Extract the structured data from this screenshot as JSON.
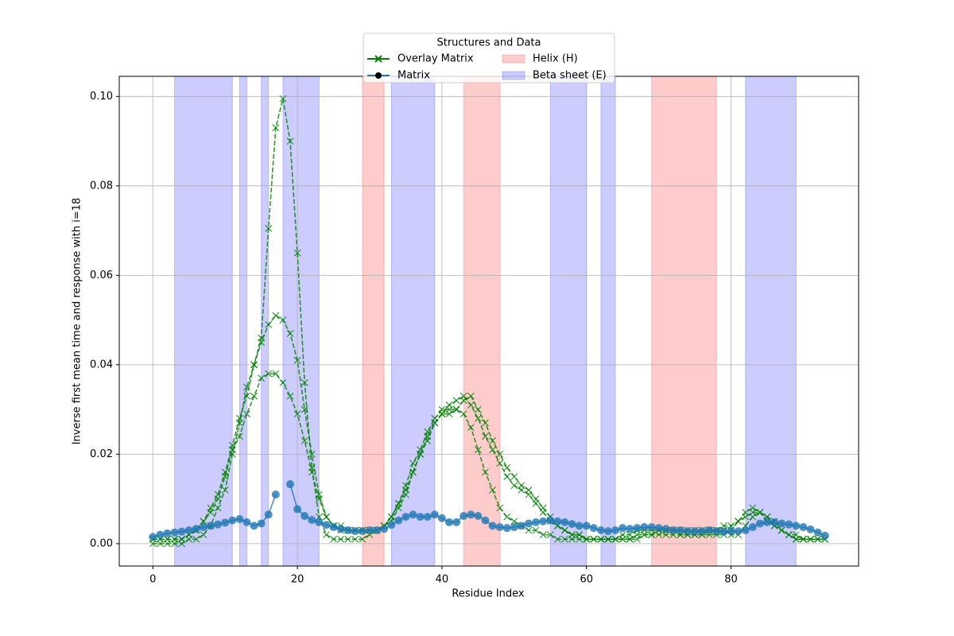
{
  "chart_data": {
    "type": "line",
    "x_label": "Residue Index",
    "y_label": "Inverse first mean time and response with i=18",
    "legend_title": "Structures and Data",
    "legend_loc": "upper center",
    "grid": true,
    "xlim": [
      -4.65,
      97.65
    ],
    "ylim": [
      -0.005,
      0.1045
    ],
    "xticks": [
      0,
      20,
      40,
      60,
      80
    ],
    "yticks": [
      {
        "value": 0,
        "label": "0.00"
      },
      {
        "value": 0.02,
        "label": "0.02"
      },
      {
        "value": 0.04,
        "label": "0.04"
      },
      {
        "value": 0.06,
        "label": "0.06"
      },
      {
        "value": 0.08,
        "label": "0.08"
      },
      {
        "value": 0.1,
        "label": "0.10"
      }
    ],
    "x": [
      0,
      1,
      2,
      3,
      4,
      5,
      6,
      7,
      8,
      9,
      10,
      11,
      12,
      13,
      14,
      15,
      16,
      17,
      18,
      19,
      20,
      21,
      22,
      23,
      24,
      25,
      26,
      27,
      28,
      29,
      30,
      31,
      32,
      33,
      34,
      35,
      36,
      37,
      38,
      39,
      40,
      41,
      42,
      43,
      44,
      45,
      46,
      47,
      48,
      49,
      50,
      51,
      52,
      53,
      54,
      55,
      56,
      57,
      58,
      59,
      60,
      61,
      62,
      63,
      64,
      65,
      66,
      67,
      68,
      69,
      70,
      71,
      72,
      73,
      74,
      75,
      76,
      77,
      78,
      79,
      80,
      81,
      82,
      83,
      84,
      85,
      86,
      87,
      88,
      89,
      90,
      91,
      92,
      93
    ],
    "series": [
      {
        "name": "Overlay Matrix",
        "color": "green",
        "dashed": true,
        "marker": "x",
        "lines": [
          [
            0,
            0,
            0,
            0,
            0,
            0.001,
            0.001,
            0.002,
            0.004,
            0.008,
            0.012,
            0.02,
            0.027,
            0.035,
            0.04,
            0.046,
            0.0705,
            0.093,
            0.0995,
            0.09,
            0.065,
            0.036,
            0.017,
            0.006,
            0.002,
            0.001,
            0.001,
            0.001,
            0.001,
            0.001,
            0.002,
            0.003,
            0.004,
            0.006,
            0.009,
            0.013,
            0.018,
            0.021,
            0.025,
            0.028,
            0.03,
            0.03,
            0.03,
            0.029,
            0.026,
            0.021,
            0.016,
            0.012,
            0.008,
            0.006,
            0.005,
            0.004,
            0.003,
            0.003,
            0.002,
            0.002,
            0.001,
            0.001,
            0.001,
            0.001,
            0.001,
            0.001,
            0.001,
            0.001,
            0.001,
            0.001,
            0.001,
            0.001,
            0.002,
            0.002,
            0.002,
            0.002,
            0.002,
            0.002,
            0.002,
            0.002,
            0.002,
            0.002,
            0.002,
            0.002,
            0.003,
            0.005,
            0.007,
            0.008,
            0.007,
            0.005,
            0.004,
            0.003,
            0.002,
            0.001,
            0.001,
            0.001,
            0.001,
            0.001
          ],
          [
            0.001,
            0.001,
            0.001,
            0.001,
            0.001,
            0.002,
            0.003,
            0.005,
            0.008,
            0.011,
            0.016,
            0.022,
            0.028,
            0.033,
            0.04,
            0.045,
            0.049,
            0.051,
            0.05,
            0.047,
            0.041,
            0.03,
            0.02,
            0.011,
            0.006,
            0.004,
            0.003,
            0.003,
            0.003,
            0.003,
            0.003,
            0.003,
            0.004,
            0.005,
            0.008,
            0.011,
            0.016,
            0.02,
            0.024,
            0.027,
            0.029,
            0.031,
            0.032,
            0.033,
            0.031,
            0.028,
            0.024,
            0.021,
            0.018,
            0.015,
            0.013,
            0.012,
            0.011,
            0.009,
            0.007,
            0.005,
            0.004,
            0.003,
            0.002,
            0.002,
            0.001,
            0.001,
            0.001,
            0.001,
            0.001,
            0.002,
            0.002,
            0.003,
            0.003,
            0.003,
            0.003,
            0.003,
            0.003,
            0.002,
            0.002,
            0.002,
            0.002,
            0.003,
            0.003,
            0.004,
            0.004,
            0.005,
            0.006,
            0.007,
            0.007,
            0.006,
            0.004,
            0.003,
            0.002,
            0.002,
            0.001,
            0.001,
            0.001,
            0.001
          ],
          [
            0.001,
            0.001,
            0.001,
            0.001,
            0.001,
            0.002,
            0.003,
            0.005,
            0.007,
            0.01,
            0.015,
            0.021,
            0.024,
            0.029,
            0.033,
            0.037,
            0.038,
            0.038,
            0.036,
            0.033,
            0.029,
            0.023,
            0.016,
            0.01,
            0.006,
            0.004,
            0.004,
            0.003,
            0.003,
            0.003,
            0.003,
            0.003,
            0.004,
            0.006,
            0.009,
            0.012,
            0.016,
            0.02,
            0.023,
            0.027,
            0.029,
            0.029,
            0.03,
            0.032,
            0.033,
            0.03,
            0.027,
            0.023,
            0.02,
            0.017,
            0.015,
            0.013,
            0.012,
            0.01,
            0.008,
            0.006,
            0.004,
            0.003,
            0.002,
            0.002,
            0.001,
            0.001,
            0.001,
            0.001,
            0.001,
            0.001,
            0.001,
            0.002,
            0.002,
            0.002,
            0.003,
            0.003,
            0.003,
            0.003,
            0.003,
            0.003,
            0.003,
            0.003,
            0.003,
            0.003,
            0.002,
            0.002,
            0.004,
            0.006,
            0.007,
            0.006,
            0.005,
            0.003,
            0.002,
            0.001,
            0.001,
            0.001,
            0.001,
            0.001
          ]
        ]
      },
      {
        "name": "Matrix",
        "color": "#1f77b4",
        "marker": "o",
        "values": [
          0.0015,
          0.002,
          0.0023,
          0.0025,
          0.0027,
          0.003,
          0.0033,
          0.0037,
          0.004,
          0.0043,
          0.0047,
          0.0052,
          0.0055,
          0.0048,
          0.004,
          0.0045,
          0.0065,
          0.011,
          null,
          0.0133,
          0.0077,
          0.0062,
          0.0053,
          0.0048,
          0.0042,
          0.0037,
          0.0033,
          0.003,
          0.0028,
          0.0028,
          0.003,
          0.003,
          0.0033,
          0.0042,
          0.0052,
          0.006,
          0.0065,
          0.006,
          0.006,
          0.0065,
          0.0057,
          0.0048,
          0.0048,
          0.0062,
          0.0065,
          0.0062,
          0.0052,
          0.004,
          0.0037,
          0.0035,
          0.0037,
          0.004,
          0.0045,
          0.0048,
          0.005,
          0.0052,
          0.005,
          0.0048,
          0.0044,
          0.004,
          0.004,
          0.0035,
          0.003,
          0.0028,
          0.003,
          0.0035,
          0.0033,
          0.0035,
          0.0037,
          0.0037,
          0.0035,
          0.0033,
          0.003,
          0.003,
          0.0028,
          0.0028,
          0.0028,
          0.003,
          0.0028,
          0.0027,
          0.0028,
          0.0028,
          0.003,
          0.0037,
          0.0045,
          0.0048,
          0.0048,
          0.0045,
          0.0043,
          0.004,
          0.0037,
          0.0032,
          0.0025,
          0.0018
        ]
      }
    ],
    "spans": [
      {
        "name": "Helix (H)",
        "color": "#ff0000",
        "ranges": [
          [
            29,
            32
          ],
          [
            43,
            48
          ],
          [
            69,
            78
          ]
        ]
      },
      {
        "name": "Beta sheet (E)",
        "color": "#0000ff",
        "ranges": [
          [
            3,
            11
          ],
          [
            12,
            13
          ],
          [
            15,
            16
          ],
          [
            18,
            23
          ],
          [
            33,
            39
          ],
          [
            55,
            60
          ],
          [
            62,
            64
          ],
          [
            82,
            89
          ]
        ]
      }
    ]
  }
}
